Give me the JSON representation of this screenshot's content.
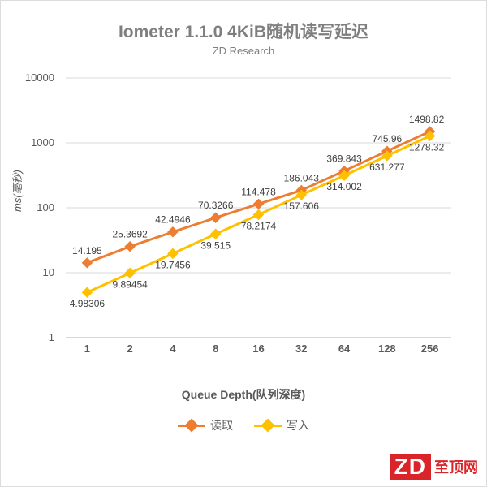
{
  "title": "Iometer 1.1.0 4KiB随机读写延迟",
  "subtitle": "ZD Research",
  "chart": {
    "type": "line",
    "y_axis": {
      "title": "ms(毫秒)",
      "scale": "log",
      "min": 1,
      "max": 10000,
      "ticks": [
        1,
        10,
        100,
        1000,
        10000
      ]
    },
    "x_axis": {
      "title": "Queue Depth(队列深度)",
      "categories": [
        "1",
        "2",
        "4",
        "8",
        "16",
        "32",
        "64",
        "128",
        "256"
      ]
    },
    "background_color": "#ffffff",
    "grid_color": "#d9d9d9",
    "series": [
      {
        "name": "读取",
        "color": "#ed7d31",
        "marker": "diamond",
        "values": [
          14.195,
          25.3692,
          42.4946,
          70.3266,
          114.478,
          186.043,
          369.843,
          745.96,
          1498.82
        ],
        "labels": [
          "14.195",
          "25.3692",
          "42.4946",
          "70.3266",
          "114.478",
          "186.043",
          "369.843",
          "745.96",
          "1498.82"
        ]
      },
      {
        "name": "写入",
        "color": "#ffc000",
        "marker": "diamond",
        "values": [
          4.98306,
          9.89454,
          19.7456,
          39.515,
          78.2174,
          157.606,
          314.002,
          631.277,
          1278.32
        ],
        "labels": [
          "4.98306",
          "9.89454",
          "19.7456",
          "39.515",
          "78.2174",
          "157.606",
          "314.002",
          "631.277",
          "1278.32"
        ]
      }
    ]
  },
  "logo": {
    "text1": "ZD",
    "text2": "至顶网",
    "brand_color": "#d9252a"
  }
}
